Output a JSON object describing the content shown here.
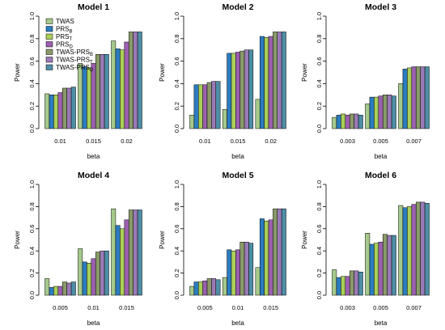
{
  "ylabel": "Power",
  "xlabel": "beta",
  "legend": [
    "TWAS",
    "PRS_B",
    "PRS_T",
    "PRS_D",
    "TWAS-PRS_B",
    "TWAS-PRS_T",
    "TWAS-PRS_D"
  ],
  "colors": [
    "#a5c98b",
    "#2b7cc0",
    "#a9cf5a",
    "#9b5fb0",
    "#8a9a6a",
    "#9a7ab6",
    "#4e8ea6"
  ],
  "chart_data": [
    {
      "type": "bar",
      "title": "Model 1",
      "xlabel": "beta",
      "ylabel": "Power",
      "ylim": [
        0,
        1.0
      ],
      "categories": [
        "0.01",
        "0.015",
        "0.02"
      ],
      "series": [
        {
          "name": "TWAS",
          "values": [
            0.31,
            0.58,
            0.78
          ]
        },
        {
          "name": "PRS_B",
          "values": [
            0.3,
            0.55,
            0.71
          ]
        },
        {
          "name": "PRS_T",
          "values": [
            0.3,
            0.54,
            0.7
          ]
        },
        {
          "name": "PRS_D",
          "values": [
            0.32,
            0.58,
            0.77
          ]
        },
        {
          "name": "TWAS-PRS_B",
          "values": [
            0.36,
            0.66,
            0.86
          ]
        },
        {
          "name": "TWAS-PRS_T",
          "values": [
            0.36,
            0.66,
            0.86
          ]
        },
        {
          "name": "TWAS-PRS_D",
          "values": [
            0.37,
            0.66,
            0.86
          ]
        }
      ]
    },
    {
      "type": "bar",
      "title": "Model 2",
      "xlabel": "beta",
      "ylabel": "Power",
      "ylim": [
        0,
        1.0
      ],
      "categories": [
        "0.01",
        "0.015",
        "0.02"
      ],
      "series": [
        {
          "name": "TWAS",
          "values": [
            0.12,
            0.17,
            0.26
          ]
        },
        {
          "name": "PRS_B",
          "values": [
            0.39,
            0.67,
            0.82
          ]
        },
        {
          "name": "PRS_T",
          "values": [
            0.39,
            0.67,
            0.81
          ]
        },
        {
          "name": "PRS_D",
          "values": [
            0.39,
            0.68,
            0.82
          ]
        },
        {
          "name": "TWAS-PRS_B",
          "values": [
            0.41,
            0.69,
            0.86
          ]
        },
        {
          "name": "TWAS-PRS_T",
          "values": [
            0.42,
            0.7,
            0.86
          ]
        },
        {
          "name": "TWAS-PRS_D",
          "values": [
            0.42,
            0.7,
            0.86
          ]
        }
      ]
    },
    {
      "type": "bar",
      "title": "Model 3",
      "xlabel": "beta",
      "ylabel": "Power",
      "ylim": [
        0,
        1.0
      ],
      "categories": [
        "0.003",
        "0.005",
        "0.007"
      ],
      "series": [
        {
          "name": "TWAS",
          "values": [
            0.1,
            0.22,
            0.4
          ]
        },
        {
          "name": "PRS_B",
          "values": [
            0.12,
            0.28,
            0.53
          ]
        },
        {
          "name": "PRS_T",
          "values": [
            0.13,
            0.28,
            0.54
          ]
        },
        {
          "name": "PRS_D",
          "values": [
            0.12,
            0.29,
            0.55
          ]
        },
        {
          "name": "TWAS-PRS_B",
          "values": [
            0.13,
            0.3,
            0.55
          ]
        },
        {
          "name": "TWAS-PRS_T",
          "values": [
            0.13,
            0.3,
            0.55
          ]
        },
        {
          "name": "TWAS-PRS_D",
          "values": [
            0.12,
            0.29,
            0.55
          ]
        }
      ]
    },
    {
      "type": "bar",
      "title": "Model 4",
      "xlabel": "beta",
      "ylabel": "Power",
      "ylim": [
        0,
        1.0
      ],
      "categories": [
        "0.005",
        "0.01",
        "0.015"
      ],
      "series": [
        {
          "name": "TWAS",
          "values": [
            0.15,
            0.42,
            0.78
          ]
        },
        {
          "name": "PRS_B",
          "values": [
            0.07,
            0.3,
            0.63
          ]
        },
        {
          "name": "PRS_T",
          "values": [
            0.08,
            0.29,
            0.6
          ]
        },
        {
          "name": "PRS_D",
          "values": [
            0.08,
            0.33,
            0.68
          ]
        },
        {
          "name": "TWAS-PRS_B",
          "values": [
            0.12,
            0.39,
            0.77
          ]
        },
        {
          "name": "TWAS-PRS_T",
          "values": [
            0.11,
            0.4,
            0.77
          ]
        },
        {
          "name": "TWAS-PRS_D",
          "values": [
            0.12,
            0.4,
            0.77
          ]
        }
      ]
    },
    {
      "type": "bar",
      "title": "Model 5",
      "xlabel": "beta",
      "ylabel": "Power",
      "ylim": [
        0,
        1.0
      ],
      "categories": [
        "0.005",
        "0.01",
        "0.015"
      ],
      "series": [
        {
          "name": "TWAS",
          "values": [
            0.08,
            0.16,
            0.25
          ]
        },
        {
          "name": "PRS_B",
          "values": [
            0.12,
            0.41,
            0.69
          ]
        },
        {
          "name": "PRS_T",
          "values": [
            0.12,
            0.4,
            0.67
          ]
        },
        {
          "name": "PRS_D",
          "values": [
            0.13,
            0.41,
            0.68
          ]
        },
        {
          "name": "TWAS-PRS_B",
          "values": [
            0.15,
            0.48,
            0.78
          ]
        },
        {
          "name": "TWAS-PRS_T",
          "values": [
            0.15,
            0.48,
            0.78
          ]
        },
        {
          "name": "TWAS-PRS_D",
          "values": [
            0.14,
            0.47,
            0.78
          ]
        }
      ]
    },
    {
      "type": "bar",
      "title": "Model 6",
      "xlabel": "beta",
      "ylabel": "Power",
      "ylim": [
        0,
        1.0
      ],
      "categories": [
        "0.003",
        "0.005",
        "0.007"
      ],
      "series": [
        {
          "name": "TWAS",
          "values": [
            0.23,
            0.56,
            0.81
          ]
        },
        {
          "name": "PRS_B",
          "values": [
            0.16,
            0.46,
            0.79
          ]
        },
        {
          "name": "PRS_T",
          "values": [
            0.17,
            0.47,
            0.8
          ]
        },
        {
          "name": "PRS_D",
          "values": [
            0.17,
            0.48,
            0.82
          ]
        },
        {
          "name": "TWAS-PRS_B",
          "values": [
            0.22,
            0.55,
            0.84
          ]
        },
        {
          "name": "TWAS-PRS_T",
          "values": [
            0.22,
            0.54,
            0.84
          ]
        },
        {
          "name": "TWAS-PRS_D",
          "values": [
            0.21,
            0.54,
            0.83
          ]
        }
      ]
    }
  ]
}
